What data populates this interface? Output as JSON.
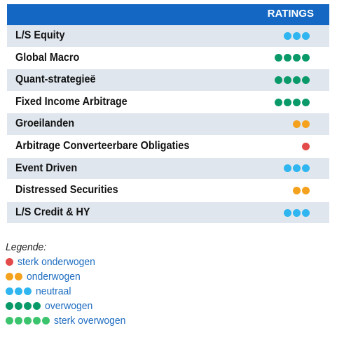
{
  "colors": {
    "header_bg": "#1468c4",
    "row_shade": "#dfe6ee",
    "red": "#e34b4b",
    "orange": "#f4a21e",
    "blue": "#2fb5ef",
    "darkgreen": "#0a9a6a",
    "lightgreen": "#3bc46d",
    "legend_text": "#1d6cc0"
  },
  "header": {
    "ratings_label": "RATINGS"
  },
  "rows": [
    {
      "label": "L/S Equity",
      "count": 3,
      "color": "blue"
    },
    {
      "label": "Global Macro",
      "count": 4,
      "color": "darkgreen"
    },
    {
      "label": "Quant-strategieë",
      "count": 4,
      "color": "darkgreen"
    },
    {
      "label": "Fixed Income Arbitrage",
      "count": 4,
      "color": "darkgreen"
    },
    {
      "label": "Groeilanden",
      "count": 2,
      "color": "orange"
    },
    {
      "label": "Arbitrage Converteerbare Obligaties",
      "count": 1,
      "color": "red"
    },
    {
      "label": "Event Driven",
      "count": 3,
      "color": "blue"
    },
    {
      "label": "Distressed Securities",
      "count": 2,
      "color": "orange"
    },
    {
      "label": "L/S Credit & HY",
      "count": 3,
      "color": "blue"
    }
  ],
  "legend": {
    "title": "Legende:",
    "items": [
      {
        "label": "sterk onderwogen",
        "count": 1,
        "color": "red"
      },
      {
        "label": "onderwogen",
        "count": 2,
        "color": "orange"
      },
      {
        "label": "neutraal",
        "count": 3,
        "color": "blue"
      },
      {
        "label": "overwogen",
        "count": 4,
        "color": "darkgreen"
      },
      {
        "label": "sterk overwogen",
        "count": 5,
        "color": "lightgreen"
      }
    ]
  }
}
